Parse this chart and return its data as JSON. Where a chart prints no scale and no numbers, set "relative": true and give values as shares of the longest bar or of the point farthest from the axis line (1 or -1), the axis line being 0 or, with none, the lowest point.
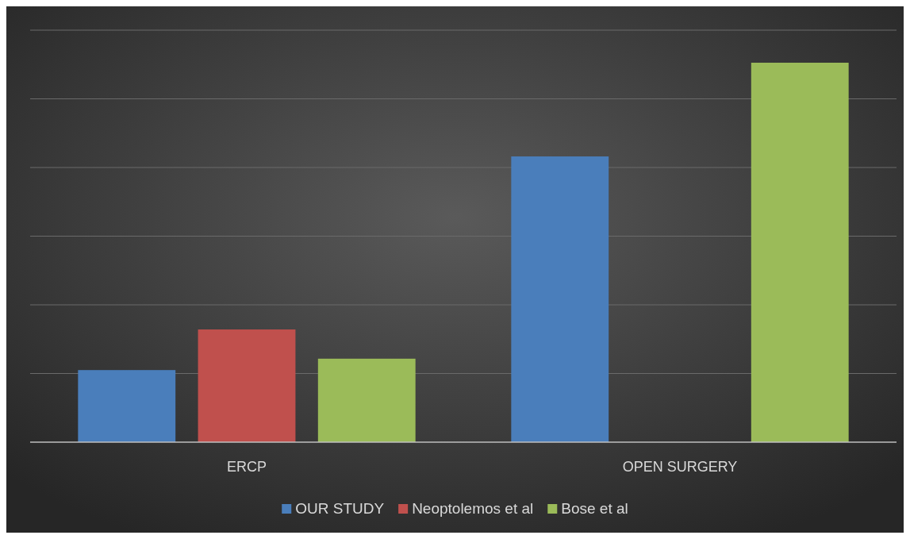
{
  "chart_data": {
    "type": "bar",
    "relative": true,
    "categories": [
      "ERCP",
      "OPEN SURGERY"
    ],
    "series": [
      {
        "name": "OUR STUDY",
        "color": "#4a7ebb",
        "values": [
          0.19,
          0.753
        ]
      },
      {
        "name": "Neoptolemos et al",
        "color": "#c0504d",
        "values": [
          0.297,
          null
        ]
      },
      {
        "name": "Bose et al",
        "color": "#9bbb59",
        "values": [
          0.22,
          1
        ]
      }
    ],
    "grid": "y",
    "legend": "bottom"
  }
}
